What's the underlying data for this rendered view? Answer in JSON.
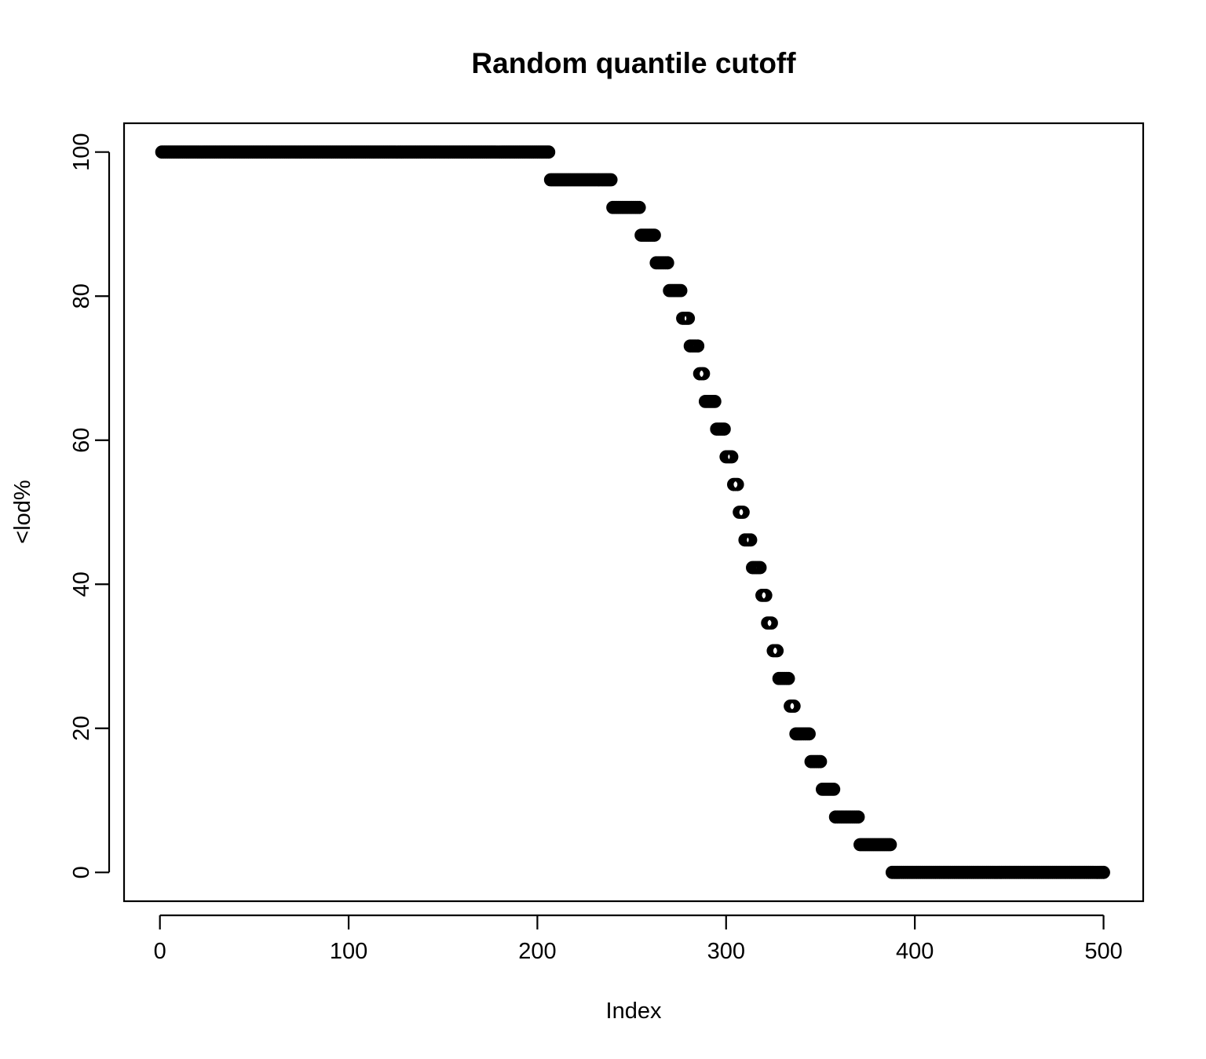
{
  "chart_data": {
    "type": "scatter",
    "title": "Random quantile cutoff",
    "xlabel": "Index",
    "ylabel": "<lod%",
    "xlim": [
      -19,
      521
    ],
    "ylim": [
      -4,
      104
    ],
    "x_ticks": [
      {
        "value": 0,
        "label": "0"
      },
      {
        "value": 100,
        "label": "100"
      },
      {
        "value": 200,
        "label": "200"
      },
      {
        "value": 300,
        "label": "300"
      },
      {
        "value": 400,
        "label": "400"
      },
      {
        "value": 500,
        "label": "500"
      }
    ],
    "y_ticks": [
      {
        "value": 0,
        "label": "0"
      },
      {
        "value": 20,
        "label": "20"
      },
      {
        "value": 40,
        "label": "40"
      },
      {
        "value": 60,
        "label": "60"
      },
      {
        "value": 80,
        "label": "80"
      },
      {
        "value": 100,
        "label": "100"
      }
    ],
    "grid": false,
    "marker": "open-circle",
    "marker_color": "#000000",
    "series": [
      {
        "runs": [
          {
            "x_start": 1,
            "x_end": 206,
            "y": 100
          },
          {
            "x_start": 207,
            "x_end": 239,
            "y": 96.15
          },
          {
            "x_start": 240,
            "x_end": 254,
            "y": 92.31
          },
          {
            "x_start": 255,
            "x_end": 262,
            "y": 88.46
          },
          {
            "x_start": 263,
            "x_end": 269,
            "y": 84.62
          },
          {
            "x_start": 270,
            "x_end": 276,
            "y": 80.77
          },
          {
            "x_start": 277,
            "x_end": 280,
            "y": 76.92
          },
          {
            "x_start": 281,
            "x_end": 285,
            "y": 73.08
          },
          {
            "x_start": 286,
            "x_end": 288,
            "y": 69.23
          },
          {
            "x_start": 289,
            "x_end": 294,
            "y": 65.38
          },
          {
            "x_start": 295,
            "x_end": 299,
            "y": 61.54
          },
          {
            "x_start": 300,
            "x_end": 303,
            "y": 57.69
          },
          {
            "x_start": 304,
            "x_end": 306,
            "y": 53.85
          },
          {
            "x_start": 307,
            "x_end": 309,
            "y": 50
          },
          {
            "x_start": 310,
            "x_end": 313,
            "y": 46.15
          },
          {
            "x_start": 314,
            "x_end": 318,
            "y": 42.31
          },
          {
            "x_start": 319,
            "x_end": 321,
            "y": 38.46
          },
          {
            "x_start": 322,
            "x_end": 324,
            "y": 34.62
          },
          {
            "x_start": 325,
            "x_end": 327,
            "y": 30.77
          },
          {
            "x_start": 328,
            "x_end": 333,
            "y": 26.92
          },
          {
            "x_start": 334,
            "x_end": 336,
            "y": 23.08
          },
          {
            "x_start": 337,
            "x_end": 344,
            "y": 19.23
          },
          {
            "x_start": 345,
            "x_end": 350,
            "y": 15.38
          },
          {
            "x_start": 351,
            "x_end": 357,
            "y": 11.54
          },
          {
            "x_start": 358,
            "x_end": 370,
            "y": 7.69
          },
          {
            "x_start": 371,
            "x_end": 387,
            "y": 3.85
          },
          {
            "x_start": 388,
            "x_end": 500,
            "y": 0
          }
        ]
      }
    ]
  }
}
